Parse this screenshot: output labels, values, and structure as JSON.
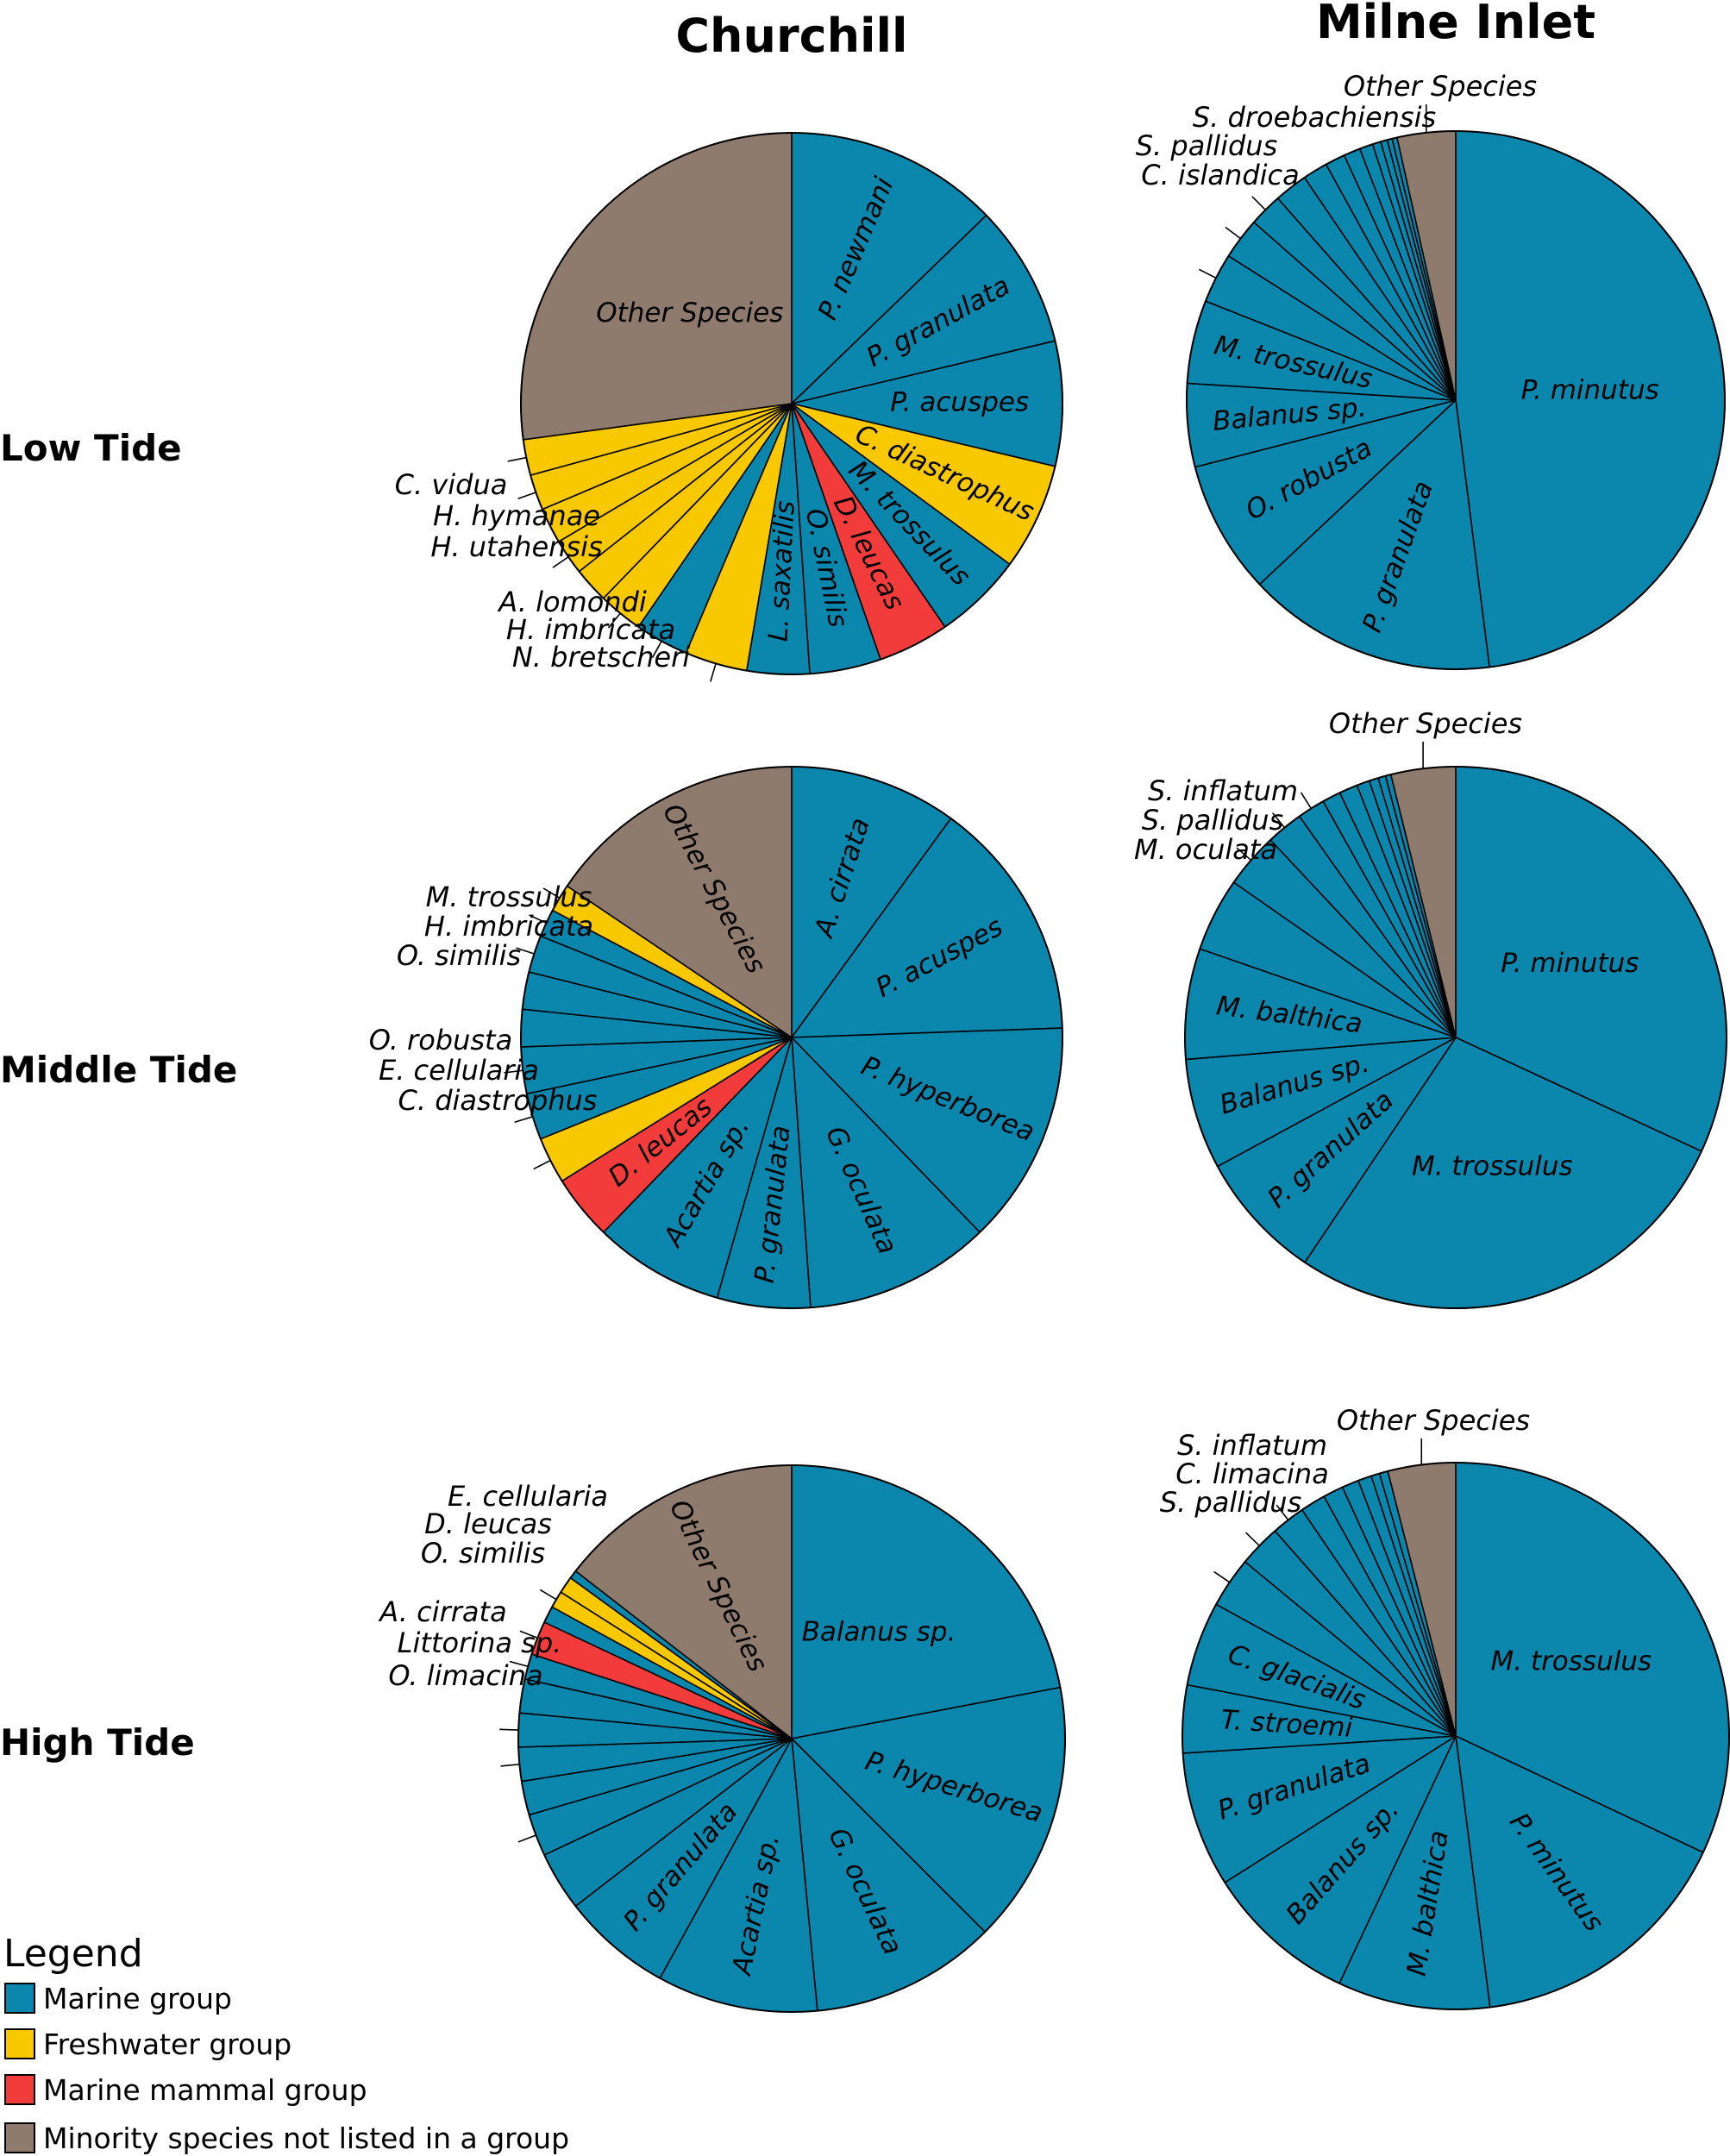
{
  "columns": [
    "Churchill",
    "Milne Inlet"
  ],
  "rows": [
    "Low Tide",
    "Middle Tide",
    "High Tide"
  ],
  "colors": {
    "Marine group": "#0b87ad",
    "Freshwater group": "#f8c800",
    "Marine mammal group": "#f23c3c",
    "Minority species not listed in a group": "#8e7b6d"
  },
  "legend": {
    "title": "Legend",
    "items": [
      {
        "label": "Marine group",
        "group": "Marine group"
      },
      {
        "label": "Freshwater group",
        "group": "Freshwater group"
      },
      {
        "label": "Marine mammal group",
        "group": "Marine mammal group"
      },
      {
        "label": "Minority species not listed in a group",
        "group": "Minority species not listed in a group"
      }
    ]
  },
  "chart_data": [
    {
      "type": "pie",
      "title": "Churchill — Low Tide",
      "column": "Churchill",
      "row": "Low Tide",
      "unit": "percent of composition (estimated)",
      "slices": [
        {
          "label": "P. newmani",
          "value": 12.0,
          "group": "Marine group"
        },
        {
          "label": "P. granulata",
          "value": 8.0,
          "group": "Marine group"
        },
        {
          "label": "P. acuspes",
          "value": 7.0,
          "group": "Marine group"
        },
        {
          "label": "C. diastrophus",
          "value": 6.0,
          "group": "Freshwater group"
        },
        {
          "label": "M. trossulus",
          "value": 5.0,
          "group": "Marine group"
        },
        {
          "label": "D. leucas",
          "value": 4.0,
          "group": "Marine mammal group"
        },
        {
          "label": "O. similis",
          "value": 4.0,
          "group": "Marine group"
        },
        {
          "label": "L. saxatilis",
          "value": 3.5,
          "group": "Marine group"
        },
        {
          "label": "N. bretscheri",
          "value": 3.5,
          "group": "Freshwater group"
        },
        {
          "label": "H. imbricata",
          "value": 3.0,
          "group": "Marine group"
        },
        {
          "label": "A. lomondi",
          "value": 2.5,
          "group": "Freshwater group"
        },
        {
          "label": "",
          "value": 2.0,
          "group": "Freshwater group"
        },
        {
          "label": "H. utahensis",
          "value": 2.0,
          "group": "Freshwater group"
        },
        {
          "label": "",
          "value": 2.0,
          "group": "Freshwater group"
        },
        {
          "label": "H. hymanae",
          "value": 2.0,
          "group": "Freshwater group"
        },
        {
          "label": "C. vidua",
          "value": 2.0,
          "group": "Freshwater group"
        },
        {
          "label": "Other Species",
          "value": 25.5,
          "group": "Minority species not listed in a group"
        }
      ]
    },
    {
      "type": "pie",
      "title": "Milne Inlet — Low Tide",
      "column": "Milne Inlet",
      "row": "Low Tide",
      "unit": "percent of composition (estimated)",
      "slices": [
        {
          "label": "P. minutus",
          "value": 48.0,
          "group": "Marine group"
        },
        {
          "label": "P. granulata",
          "value": 15.0,
          "group": "Marine group"
        },
        {
          "label": "O. robusta",
          "value": 8.0,
          "group": "Marine group"
        },
        {
          "label": "Balanus sp.",
          "value": 5.0,
          "group": "Marine group"
        },
        {
          "label": "M. trossulus",
          "value": 5.0,
          "group": "Marine group"
        },
        {
          "label": "C. islandica",
          "value": 3.0,
          "group": "Marine group"
        },
        {
          "label": "S. pallidus",
          "value": 2.5,
          "group": "Marine group"
        },
        {
          "label": "S. droebachiensis",
          "value": 2.0,
          "group": "Marine group"
        },
        {
          "label": "",
          "value": 2.0,
          "group": "Marine group"
        },
        {
          "label": "",
          "value": 1.5,
          "group": "Marine group"
        },
        {
          "label": "",
          "value": 1.2,
          "group": "Marine group"
        },
        {
          "label": "",
          "value": 1.0,
          "group": "Marine group"
        },
        {
          "label": "",
          "value": 0.8,
          "group": "Marine group"
        },
        {
          "label": "",
          "value": 0.5,
          "group": "Marine group"
        },
        {
          "label": "",
          "value": 0.4,
          "group": "Marine group"
        },
        {
          "label": "",
          "value": 0.3,
          "group": "Marine group"
        },
        {
          "label": "",
          "value": 0.3,
          "group": "Marine group"
        },
        {
          "label": "Other Species",
          "value": 3.5,
          "group": "Minority species not listed in a group"
        }
      ]
    },
    {
      "type": "pie",
      "title": "Churchill — Middle Tide",
      "column": "Churchill",
      "row": "Middle Tide",
      "unit": "percent of composition (estimated)",
      "slices": [
        {
          "label": "A. cirrata",
          "value": 9.0,
          "group": "Marine group"
        },
        {
          "label": "P. acuspes",
          "value": 13.0,
          "group": "Marine group"
        },
        {
          "label": "P. hyperborea",
          "value": 12.0,
          "group": "Marine group"
        },
        {
          "label": "G. oculata",
          "value": 10.0,
          "group": "Marine group"
        },
        {
          "label": "P. granulata",
          "value": 5.0,
          "group": "Marine group"
        },
        {
          "label": "Acartia sp.",
          "value": 7.0,
          "group": "Marine group"
        },
        {
          "label": "D. leucas",
          "value": 3.5,
          "group": "Marine mammal group"
        },
        {
          "label": "C. diastrophus",
          "value": 2.5,
          "group": "Freshwater group"
        },
        {
          "label": "E. cellularia",
          "value": 2.5,
          "group": "Marine group"
        },
        {
          "label": "O. robusta",
          "value": 2.5,
          "group": "Marine group"
        },
        {
          "label": "",
          "value": 2.0,
          "group": "Marine group"
        },
        {
          "label": "",
          "value": 2.0,
          "group": "Marine group"
        },
        {
          "label": "O. similis",
          "value": 2.0,
          "group": "Marine group"
        },
        {
          "label": "H. imbricata",
          "value": 1.5,
          "group": "Marine group"
        },
        {
          "label": "M. trossulus",
          "value": 1.5,
          "group": "Freshwater group"
        },
        {
          "label": "Other Species",
          "value": 14.0,
          "group": "Minority species not listed in a group"
        }
      ]
    },
    {
      "type": "pie",
      "title": "Milne Inlet — Middle Tide",
      "column": "Milne Inlet",
      "row": "Middle Tide",
      "unit": "percent of composition (estimated)",
      "slices": [
        {
          "label": "P. minutus",
          "value": 29.0,
          "group": "Marine group"
        },
        {
          "label": "M. trossulus",
          "value": 25.0,
          "group": "Marine group"
        },
        {
          "label": "P. granulata",
          "value": 7.0,
          "group": "Marine group"
        },
        {
          "label": "Balanus sp.",
          "value": 6.0,
          "group": "Marine group"
        },
        {
          "label": "M. balthica",
          "value": 6.0,
          "group": "Marine group"
        },
        {
          "label": "",
          "value": 4.0,
          "group": "Marine group"
        },
        {
          "label": "M. oculata",
          "value": 3.0,
          "group": "Marine group"
        },
        {
          "label": "S. pallidus",
          "value": 2.0,
          "group": "Marine group"
        },
        {
          "label": "S. inflatum",
          "value": 1.5,
          "group": "Marine group"
        },
        {
          "label": "",
          "value": 1.0,
          "group": "Marine group"
        },
        {
          "label": "",
          "value": 1.0,
          "group": "Marine group"
        },
        {
          "label": "",
          "value": 0.7,
          "group": "Marine group"
        },
        {
          "label": "",
          "value": 0.5,
          "group": "Marine group"
        },
        {
          "label": "",
          "value": 0.4,
          "group": "Marine group"
        },
        {
          "label": "",
          "value": 0.3,
          "group": "Marine group"
        },
        {
          "label": "Other Species",
          "value": 3.5,
          "group": "Minority species not listed in a group"
        }
      ]
    },
    {
      "type": "pie",
      "title": "Churchill — High Tide",
      "column": "Churchill",
      "row": "High Tide",
      "unit": "percent of composition (estimated)",
      "slices": [
        {
          "label": "Balanus sp.",
          "value": 22.0,
          "group": "Marine group"
        },
        {
          "label": "P. hyperborea",
          "value": 15.5,
          "group": "Marine group"
        },
        {
          "label": "G. oculata",
          "value": 11.0,
          "group": "Marine group"
        },
        {
          "label": "Acartia sp.",
          "value": 9.5,
          "group": "Marine group"
        },
        {
          "label": "P. granulata",
          "value": 6.5,
          "group": "Marine group"
        },
        {
          "label": "",
          "value": 3.5,
          "group": "Marine group"
        },
        {
          "label": "O. limacina",
          "value": 2.5,
          "group": "Marine group"
        },
        {
          "label": "",
          "value": 2.0,
          "group": "Marine group"
        },
        {
          "label": "Littorina sp.",
          "value": 2.0,
          "group": "Marine group"
        },
        {
          "label": "A. cirrata",
          "value": 2.0,
          "group": "Marine group"
        },
        {
          "label": "",
          "value": 2.0,
          "group": "Marine group"
        },
        {
          "label": "O. similis",
          "value": 1.5,
          "group": "Marine group"
        },
        {
          "label": "D. leucas",
          "value": 2.0,
          "group": "Marine mammal group"
        },
        {
          "label": "",
          "value": 1.0,
          "group": "Marine group"
        },
        {
          "label": "E. cellularia",
          "value": 1.0,
          "group": "Freshwater group"
        },
        {
          "label": "",
          "value": 1.0,
          "group": "Freshwater group"
        },
        {
          "label": "",
          "value": 0.5,
          "group": "Marine group"
        },
        {
          "label": "Other Species",
          "value": 14.5,
          "group": "Minority species not listed in a group"
        }
      ]
    },
    {
      "type": "pie",
      "title": "Milne Inlet — High Tide",
      "column": "Milne Inlet",
      "row": "High Tide",
      "unit": "percent of composition (estimated)",
      "slices": [
        {
          "label": "M. trossulus",
          "value": 32.0,
          "group": "Marine group"
        },
        {
          "label": "P. minutus",
          "value": 16.0,
          "group": "Marine group"
        },
        {
          "label": "M. balthica",
          "value": 9.0,
          "group": "Marine group"
        },
        {
          "label": "Balanus sp.",
          "value": 9.0,
          "group": "Marine group"
        },
        {
          "label": "P. granulata",
          "value": 8.0,
          "group": "Marine group"
        },
        {
          "label": "T. stroemi",
          "value": 4.0,
          "group": "Marine group"
        },
        {
          "label": "C. glacialis",
          "value": 5.0,
          "group": "Marine group"
        },
        {
          "label": "S. pallidus",
          "value": 3.0,
          "group": "Marine group"
        },
        {
          "label": "C. limacina",
          "value": 2.5,
          "group": "Marine group"
        },
        {
          "label": "S. inflatum",
          "value": 2.0,
          "group": "Marine group"
        },
        {
          "label": "",
          "value": 1.5,
          "group": "Marine group"
        },
        {
          "label": "",
          "value": 1.2,
          "group": "Marine group"
        },
        {
          "label": "",
          "value": 1.0,
          "group": "Marine group"
        },
        {
          "label": "",
          "value": 0.8,
          "group": "Marine group"
        },
        {
          "label": "",
          "value": 0.5,
          "group": "Marine group"
        },
        {
          "label": "",
          "value": 0.5,
          "group": "Marine group"
        },
        {
          "label": "Other Species",
          "value": 4.0,
          "group": "Minority species not listed in a group"
        }
      ]
    }
  ]
}
